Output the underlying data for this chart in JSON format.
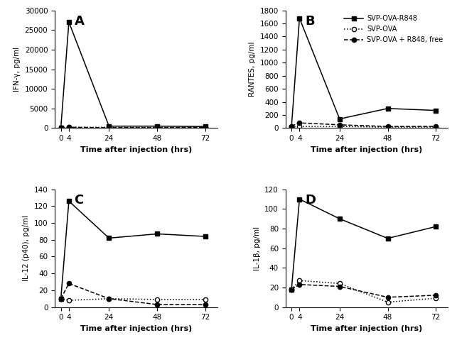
{
  "time": [
    0,
    4,
    24,
    48,
    72
  ],
  "panel_A": {
    "label": "A",
    "ylabel": "IFN-γ, pg/ml",
    "ylim": [
      0,
      30000
    ],
    "yticks": [
      0,
      5000,
      10000,
      15000,
      20000,
      25000,
      30000
    ],
    "svp_ova_r848": [
      100,
      27000,
      500,
      500,
      400
    ],
    "svp_ova": [
      100,
      200,
      200,
      200,
      200
    ],
    "svp_ova_free": [
      100,
      200,
      100,
      100,
      150
    ]
  },
  "panel_B": {
    "label": "B",
    "ylabel": "RANTES, pg/ml",
    "ylim": [
      0,
      1800
    ],
    "yticks": [
      0,
      200,
      400,
      600,
      800,
      1000,
      1200,
      1400,
      1600,
      1800
    ],
    "svp_ova_r848": [
      20,
      1680,
      140,
      300,
      270
    ],
    "svp_ova": [
      15,
      25,
      25,
      15,
      15
    ],
    "svp_ova_free": [
      30,
      80,
      50,
      25,
      25
    ]
  },
  "panel_C": {
    "label": "C",
    "ylabel": "IL-12 (p40), pg/ml",
    "ylim": [
      0,
      140
    ],
    "yticks": [
      0,
      20,
      40,
      60,
      80,
      100,
      120,
      140
    ],
    "svp_ova_r848": [
      10,
      126,
      82,
      87,
      84
    ],
    "svp_ova": [
      10,
      8,
      10,
      9,
      9
    ],
    "svp_ova_free": [
      10,
      28,
      10,
      3,
      3
    ]
  },
  "panel_D": {
    "label": "D",
    "ylabel": "IL-1β, pg/ml",
    "ylim": [
      0,
      120
    ],
    "yticks": [
      0,
      20,
      40,
      60,
      80,
      100,
      120
    ],
    "svp_ova_r848": [
      18,
      110,
      90,
      70,
      82
    ],
    "svp_ova": [
      18,
      27,
      24,
      5,
      9
    ],
    "svp_ova_free": [
      18,
      23,
      21,
      10,
      12
    ]
  },
  "legend": {
    "svp_ova_r848": "SVP-OVA-R848",
    "svp_ova": "SVP-OVA",
    "svp_ova_free": "SVP-OVA + R848, free"
  },
  "xlabel": "Time after injection (hrs)",
  "color": "#000000"
}
